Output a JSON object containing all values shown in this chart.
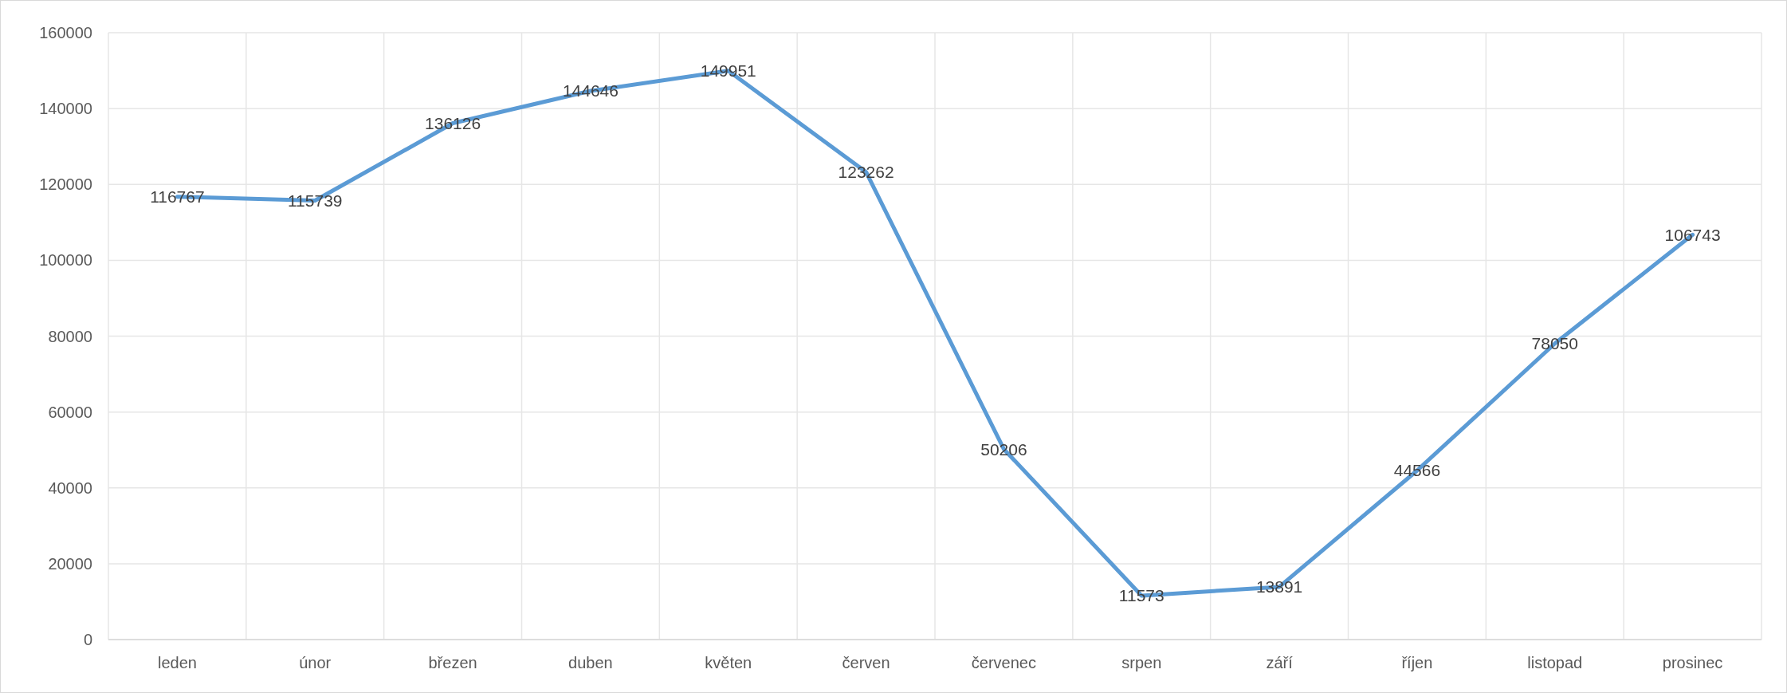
{
  "chart_data": {
    "type": "line",
    "categories": [
      "leden",
      "únor",
      "březen",
      "duben",
      "květen",
      "červen",
      "červenec",
      "srpen",
      "září",
      "říjen",
      "listopad",
      "prosinec"
    ],
    "series": [
      {
        "color": "#5b9bd5",
        "values": [
          116767,
          115739,
          136126,
          144646,
          149951,
          123262,
          50206,
          11573,
          13891,
          44566,
          78050,
          106743
        ]
      }
    ],
    "ylim": [
      0,
      160000
    ],
    "yticks": [
      0,
      20000,
      40000,
      60000,
      80000,
      100000,
      120000,
      140000,
      160000
    ],
    "grid": true,
    "data_labels": true,
    "marker": "none"
  }
}
